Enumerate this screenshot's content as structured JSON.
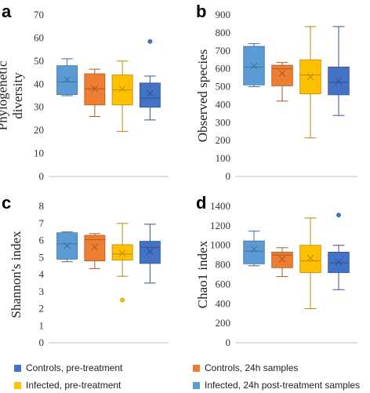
{
  "legend": [
    {
      "label": "Controls, pre-treatment",
      "color": "#4472C4"
    },
    {
      "label": "Controls, 24h samples",
      "color": "#ED7D31"
    },
    {
      "label": "Infected, pre-treatment",
      "color": "#FFC000"
    },
    {
      "label": "Infected, 24h post-treatment samples",
      "color": "#5B9BD5"
    }
  ],
  "chart_data": [
    {
      "panel": "a",
      "type": "box",
      "ylabel": "Phylogenetic diversity",
      "ylim": [
        0,
        70
      ],
      "yticks": [
        0,
        10,
        20,
        30,
        40,
        50,
        60,
        70
      ],
      "series": [
        {
          "name": "Infected, 24h post-treatment samples",
          "color": "#5B9BD5",
          "min": 35,
          "q1": 35.5,
          "median": 41,
          "q3": 48,
          "max": 51,
          "mean": 42,
          "outliers": []
        },
        {
          "name": "Controls, 24h samples",
          "color": "#ED7D31",
          "min": 26,
          "q1": 31,
          "median": 38,
          "q3": 44.5,
          "max": 46.5,
          "mean": 38,
          "outliers": []
        },
        {
          "name": "Infected, pre-treatment",
          "color": "#FFC000",
          "min": 19.5,
          "q1": 31,
          "median": 37.5,
          "q3": 44,
          "max": 50,
          "mean": 38,
          "outliers": []
        },
        {
          "name": "Controls, pre-treatment",
          "color": "#4472C4",
          "min": 24.5,
          "q1": 30,
          "median": 34,
          "q3": 40.5,
          "max": 43.5,
          "mean": 36,
          "outliers": [
            58.5
          ]
        }
      ]
    },
    {
      "panel": "b",
      "type": "box",
      "ylabel": "Observed species",
      "ylim": [
        0,
        900
      ],
      "yticks": [
        0,
        100,
        200,
        300,
        400,
        500,
        600,
        700,
        800,
        900
      ],
      "series": [
        {
          "name": "Infected, 24h post-treatment samples",
          "color": "#5B9BD5",
          "min": 500,
          "q1": 510,
          "median": 610,
          "q3": 725,
          "max": 740,
          "mean": 615,
          "outliers": []
        },
        {
          "name": "Controls, 24h samples",
          "color": "#ED7D31",
          "min": 420,
          "q1": 505,
          "median": 600,
          "q3": 620,
          "max": 635,
          "mean": 575,
          "outliers": []
        },
        {
          "name": "Infected, pre-treatment",
          "color": "#FFC000",
          "min": 215,
          "q1": 460,
          "median": 565,
          "q3": 650,
          "max": 835,
          "mean": 555,
          "outliers": []
        },
        {
          "name": "Controls, pre-treatment",
          "color": "#4472C4",
          "min": 340,
          "q1": 455,
          "median": 525,
          "q3": 610,
          "max": 835,
          "mean": 530,
          "outliers": []
        }
      ]
    },
    {
      "panel": "c",
      "type": "box",
      "ylabel": "Shannon's index",
      "ylim": [
        0,
        8
      ],
      "yticks": [
        0,
        1,
        2,
        3,
        4,
        5,
        6,
        7,
        8
      ],
      "series": [
        {
          "name": "Infected, 24h post-treatment samples",
          "color": "#5B9BD5",
          "min": 4.75,
          "q1": 4.9,
          "median": 5.8,
          "q3": 6.45,
          "max": 6.5,
          "mean": 5.7,
          "outliers": []
        },
        {
          "name": "Controls, 24h samples",
          "color": "#ED7D31",
          "min": 4.35,
          "q1": 4.8,
          "median": 6.05,
          "q3": 6.3,
          "max": 6.4,
          "mean": 5.6,
          "outliers": []
        },
        {
          "name": "Infected, pre-treatment",
          "color": "#FFC000",
          "min": 3.9,
          "q1": 4.85,
          "median": 5.2,
          "q3": 5.75,
          "max": 7.0,
          "mean": 5.25,
          "outliers": [
            2.5
          ]
        },
        {
          "name": "Controls, pre-treatment",
          "color": "#4472C4",
          "min": 3.5,
          "q1": 4.65,
          "median": 5.6,
          "q3": 5.95,
          "max": 6.95,
          "mean": 5.35,
          "outliers": []
        }
      ]
    },
    {
      "panel": "d",
      "type": "box",
      "ylabel": "Chao1 index",
      "ylim": [
        0,
        1400
      ],
      "yticks": [
        0,
        200,
        400,
        600,
        800,
        1000,
        1200,
        1400
      ],
      "series": [
        {
          "name": "Infected, 24h post-treatment samples",
          "color": "#5B9BD5",
          "min": 790,
          "q1": 810,
          "median": 940,
          "q3": 1045,
          "max": 1145,
          "mean": 960,
          "outliers": []
        },
        {
          "name": "Controls, 24h samples",
          "color": "#ED7D31",
          "min": 680,
          "q1": 770,
          "median": 900,
          "q3": 930,
          "max": 975,
          "mean": 860,
          "outliers": []
        },
        {
          "name": "Infected, pre-treatment",
          "color": "#FFC000",
          "min": 350,
          "q1": 720,
          "median": 840,
          "q3": 1000,
          "max": 1280,
          "mean": 870,
          "outliers": []
        },
        {
          "name": "Controls, pre-treatment",
          "color": "#4472C4",
          "min": 545,
          "q1": 720,
          "median": 820,
          "q3": 930,
          "max": 1000,
          "mean": 830,
          "outliers": [
            1310
          ]
        }
      ]
    }
  ]
}
